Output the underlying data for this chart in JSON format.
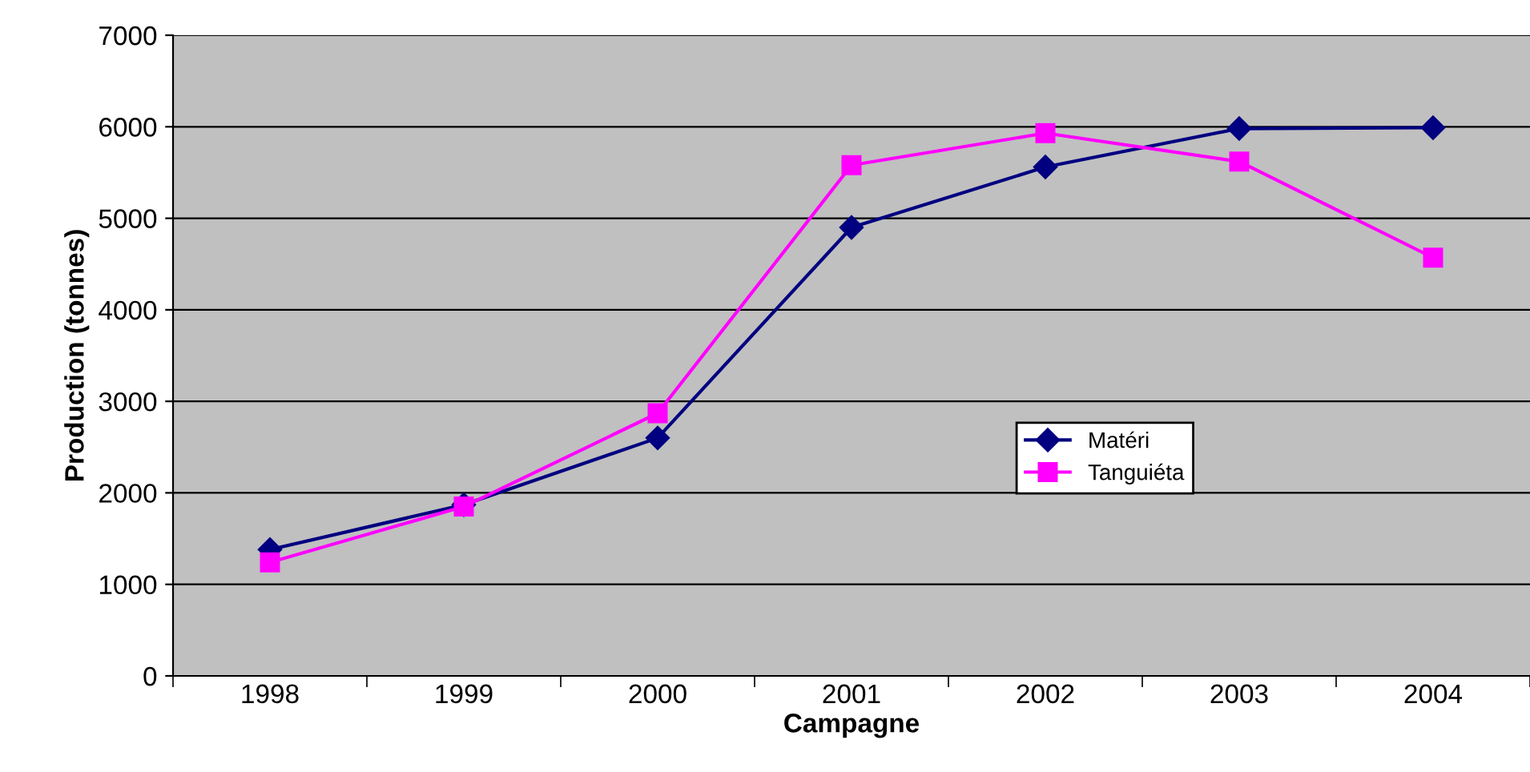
{
  "chart_data": {
    "type": "line",
    "xlabel": "Campagne",
    "ylabel": "Production (tonnes)",
    "categories": [
      "1998",
      "1999",
      "2000",
      "2001",
      "2002",
      "2003",
      "2004"
    ],
    "series": [
      {
        "name": "Matéri",
        "color": "#000080",
        "marker": "diamond",
        "values": [
          1380,
          1870,
          2600,
          4900,
          5560,
          5980,
          5990
        ]
      },
      {
        "name": "Tanguiéta",
        "color": "#ff00ff",
        "marker": "square",
        "values": [
          1240,
          1850,
          2870,
          5580,
          5930,
          5620,
          4570
        ]
      }
    ],
    "ylim": [
      0,
      7000
    ],
    "yticks": [
      0,
      1000,
      2000,
      3000,
      4000,
      5000,
      6000,
      7000
    ],
    "grid": "y",
    "legend": "center right"
  }
}
